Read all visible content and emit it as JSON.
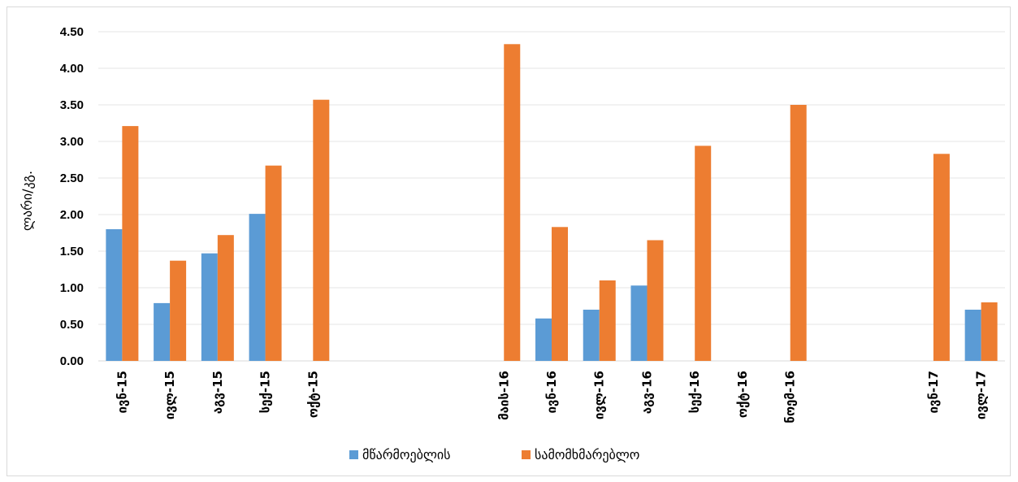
{
  "chart_data": {
    "type": "bar",
    "title": "",
    "xlabel": "",
    "ylabel": "ლარი/კგ.",
    "ylim": [
      0,
      4.5
    ],
    "yticks": [
      "0.00",
      "0.50",
      "1.00",
      "1.50",
      "2.00",
      "2.50",
      "3.00",
      "3.50",
      "4.00",
      "4.50"
    ],
    "grid": true,
    "legend_position": "bottom",
    "categories": [
      "ივნ-15",
      "ივლ-15",
      "აგვ-15",
      "სექ-15",
      "ოქტ-15",
      "",
      "",
      "",
      "მაის-16",
      "ივნ-16",
      "ივლ-16",
      "აგვ-16",
      "სექ-16",
      "ოქტ-16",
      "ნოემ-16",
      "",
      "",
      "ივნ-17",
      "ივლ-17"
    ],
    "series": [
      {
        "name": "მწარმოებლის",
        "color": "#5B9BD5",
        "values": [
          1.8,
          0.79,
          1.47,
          2.01,
          null,
          null,
          null,
          null,
          null,
          0.58,
          0.7,
          1.03,
          null,
          null,
          null,
          null,
          null,
          null,
          0.7
        ]
      },
      {
        "name": "სამომხმარებლო",
        "color": "#ED7D31",
        "values": [
          3.21,
          1.37,
          1.72,
          2.67,
          3.57,
          null,
          null,
          null,
          4.33,
          1.83,
          1.1,
          1.65,
          2.94,
          null,
          3.5,
          null,
          null,
          2.83,
          0.8
        ]
      }
    ]
  }
}
